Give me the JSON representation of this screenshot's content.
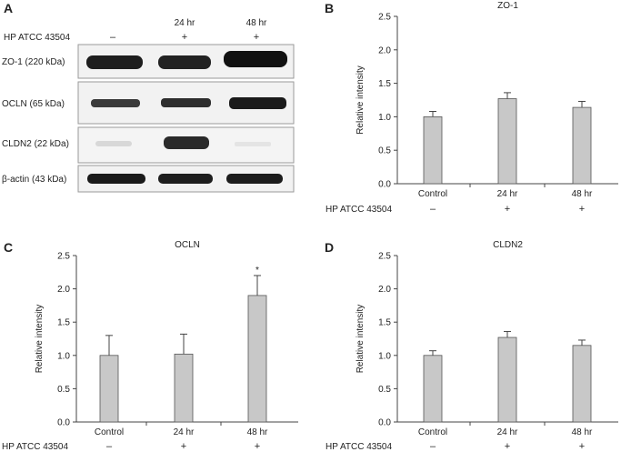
{
  "panel_letters": [
    "A",
    "B",
    "C",
    "D"
  ],
  "blot": {
    "treatment_label": "HP ATCC 43504",
    "columns": [
      {
        "time": "",
        "sign": "–"
      },
      {
        "time": "24 hr",
        "sign": "+"
      },
      {
        "time": "48 hr",
        "sign": "+"
      }
    ],
    "rows": [
      {
        "label": "ZO-1 (220 kDa)"
      },
      {
        "label": "OCLN (65 kDa)"
      },
      {
        "label": "CLDN2 (22 kDa)"
      },
      {
        "label": "β-actin (43 kDa)"
      }
    ]
  },
  "chart_data": [
    {
      "type": "bar",
      "title": "ZO-1",
      "ylabel": "Relative intensity",
      "categories": [
        "Control",
        "24 hr",
        "48 hr"
      ],
      "treatment_label": "HP ATCC 43504",
      "treatment_signs": [
        "–",
        "+",
        "+"
      ],
      "values": [
        1.0,
        1.27,
        1.14
      ],
      "errors": [
        0.08,
        0.09,
        0.09
      ],
      "annotations": [
        "",
        "",
        ""
      ],
      "ylim": [
        0,
        2.5
      ],
      "yticks": [
        "0.0",
        "0.5",
        "1.0",
        "1.5",
        "2.0",
        "2.5"
      ],
      "bar_color": "#c8c8c8"
    },
    {
      "type": "bar",
      "title": "OCLN",
      "ylabel": "Relative intensity",
      "categories": [
        "Control",
        "24 hr",
        "48 hr"
      ],
      "treatment_label": "HP ATCC 43504",
      "treatment_signs": [
        "–",
        "+",
        "+"
      ],
      "values": [
        1.0,
        1.02,
        1.9
      ],
      "errors": [
        0.3,
        0.3,
        0.3
      ],
      "annotations": [
        "",
        "",
        "*"
      ],
      "ylim": [
        0,
        2.5
      ],
      "yticks": [
        "0.0",
        "0.5",
        "1.0",
        "1.5",
        "2.0",
        "2.5"
      ],
      "bar_color": "#c8c8c8"
    },
    {
      "type": "bar",
      "title": "CLDN2",
      "ylabel": "Relative intensity",
      "categories": [
        "Control",
        "24 hr",
        "48 hr"
      ],
      "treatment_label": "HP ATCC 43504",
      "treatment_signs": [
        "–",
        "+",
        "+"
      ],
      "values": [
        1.0,
        1.27,
        1.15
      ],
      "errors": [
        0.07,
        0.09,
        0.08
      ],
      "annotations": [
        "",
        "",
        ""
      ],
      "ylim": [
        0,
        2.5
      ],
      "yticks": [
        "0.0",
        "0.5",
        "1.0",
        "1.5",
        "2.0",
        "2.5"
      ],
      "bar_color": "#c8c8c8"
    }
  ]
}
